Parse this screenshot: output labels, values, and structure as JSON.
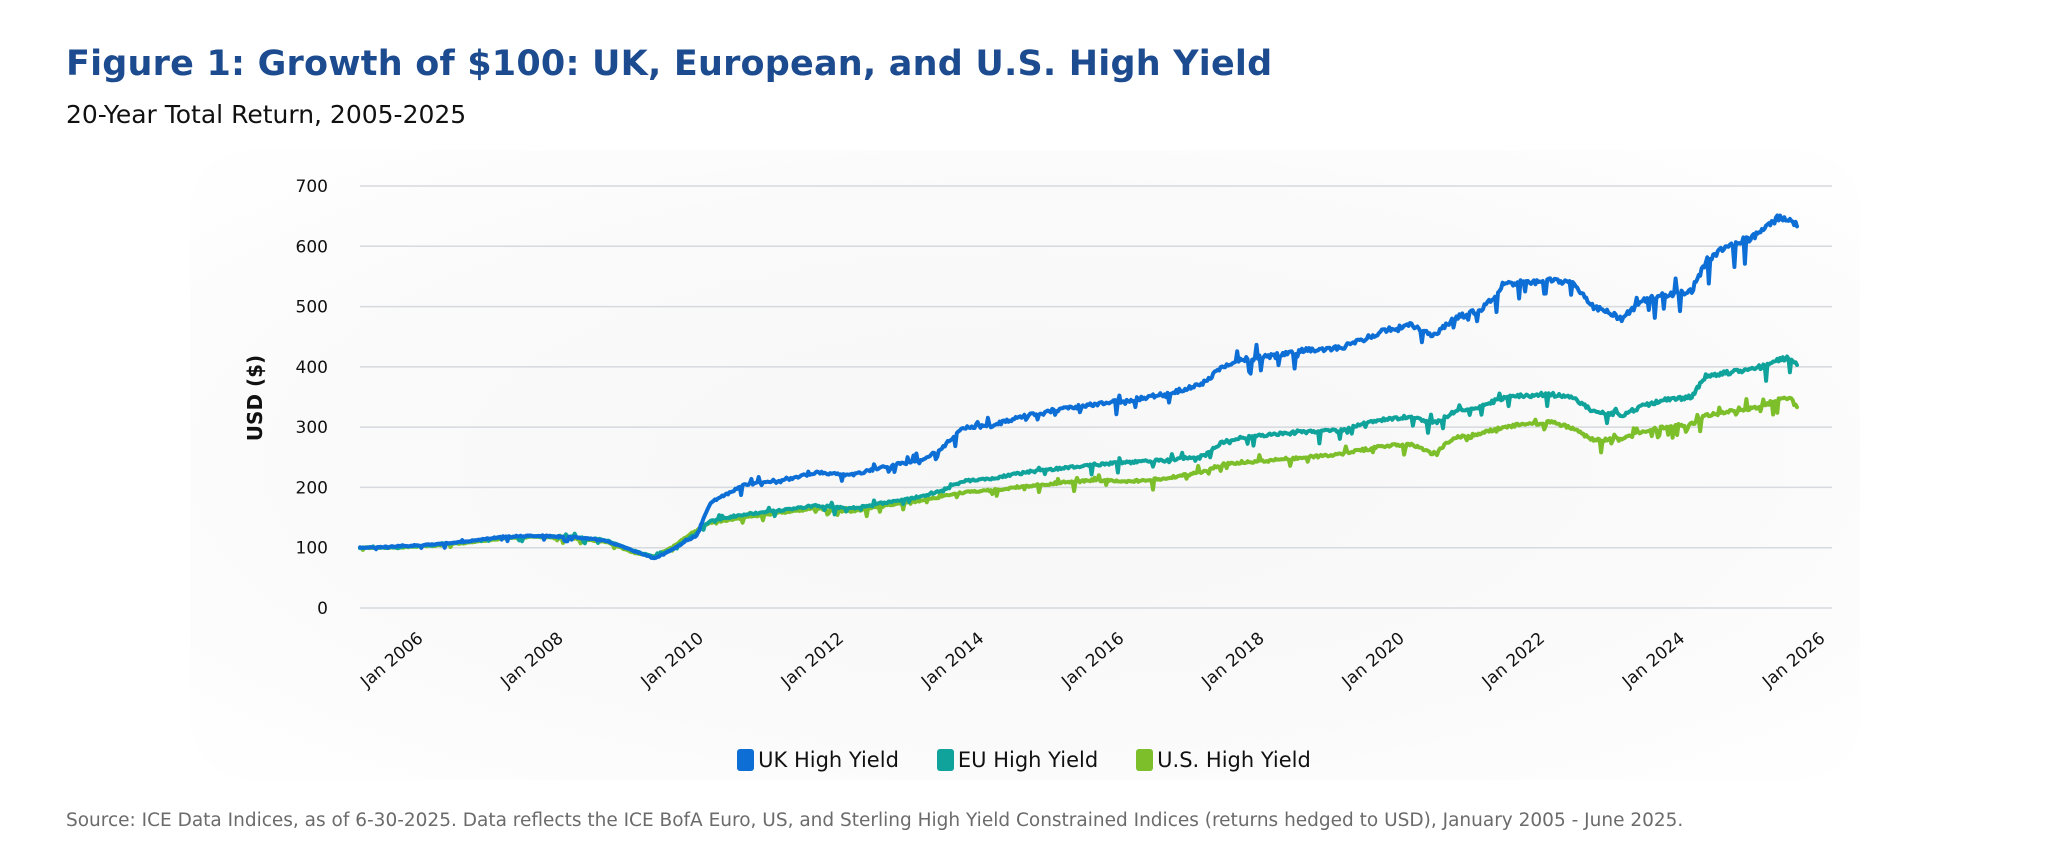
{
  "chart_data": {
    "type": "line",
    "title": "Figure 1: Growth of $100: UK, European, and U.S. High Yield",
    "subtitle": "20-Year Total Return, 2005-2025",
    "xlabel": "",
    "ylabel": "USD ($)",
    "ylim": [
      0,
      700
    ],
    "xlim": [
      2005.0,
      2026.0
    ],
    "grid": true,
    "legend_position": "bottom-center",
    "y_ticks": [
      0,
      100,
      200,
      300,
      400,
      500,
      600,
      700
    ],
    "x_ticks": [
      {
        "value": 2006,
        "label": "Jan 2006"
      },
      {
        "value": 2008,
        "label": "Jan 2008"
      },
      {
        "value": 2010,
        "label": "Jan 2010"
      },
      {
        "value": 2012,
        "label": "Jan 2012"
      },
      {
        "value": 2014,
        "label": "Jan 2014"
      },
      {
        "value": 2016,
        "label": "Jan 2016"
      },
      {
        "value": 2018,
        "label": "Jan 2018"
      },
      {
        "value": 2020,
        "label": "Jan 2020"
      },
      {
        "value": 2022,
        "label": "Jan 2022"
      },
      {
        "value": 2024,
        "label": "Jan 2024"
      },
      {
        "value": 2026,
        "label": "Jan 2026"
      }
    ],
    "series": [
      {
        "name": "UK High Yield",
        "color": "#0d6fd6",
        "x": [
          2005.0,
          2005.5,
          2006.0,
          2006.5,
          2007.0,
          2007.5,
          2008.0,
          2008.5,
          2008.9,
          2009.2,
          2009.5,
          2009.8,
          2010.0,
          2010.5,
          2011.0,
          2011.5,
          2012.0,
          2012.5,
          2013.0,
          2013.3,
          2013.6,
          2014.0,
          2014.5,
          2015.0,
          2015.5,
          2016.0,
          2016.5,
          2017.0,
          2017.3,
          2017.6,
          2018.0,
          2018.5,
          2019.0,
          2019.3,
          2019.6,
          2020.0,
          2020.3,
          2020.6,
          2021.0,
          2021.3,
          2021.6,
          2022.0,
          2022.3,
          2022.6,
          2023.0,
          2023.3,
          2023.6,
          2024.0,
          2024.2,
          2024.5,
          2024.8,
          2025.0,
          2025.2,
          2025.4,
          2025.5
        ],
        "values": [
          100,
          102,
          105,
          110,
          118,
          120,
          118,
          112,
          95,
          82,
          100,
          120,
          175,
          205,
          210,
          225,
          220,
          235,
          245,
          265,
          300,
          302,
          320,
          330,
          338,
          345,
          355,
          370,
          400,
          412,
          418,
          428,
          432,
          445,
          460,
          470,
          450,
          480,
          495,
          535,
          540,
          545,
          540,
          500,
          480,
          510,
          520,
          525,
          575,
          600,
          612,
          625,
          645,
          648,
          633
        ]
      },
      {
        "name": "EU High Yield",
        "color": "#10a39b",
        "x": [
          2005.0,
          2005.5,
          2006.0,
          2006.5,
          2007.0,
          2007.5,
          2008.0,
          2008.5,
          2008.9,
          2009.2,
          2009.5,
          2009.8,
          2010.0,
          2010.5,
          2011.0,
          2011.5,
          2012.0,
          2012.5,
          2013.0,
          2013.3,
          2013.6,
          2014.0,
          2014.5,
          2015.0,
          2015.5,
          2016.0,
          2016.5,
          2017.0,
          2017.3,
          2017.6,
          2018.0,
          2018.5,
          2019.0,
          2019.3,
          2019.6,
          2020.0,
          2020.3,
          2020.6,
          2021.0,
          2021.3,
          2021.6,
          2022.0,
          2022.3,
          2022.6,
          2023.0,
          2023.3,
          2023.6,
          2024.0,
          2024.2,
          2024.5,
          2024.8,
          2025.0,
          2025.2,
          2025.4,
          2025.5
        ],
        "values": [
          100,
          101,
          104,
          110,
          117,
          119,
          118,
          113,
          95,
          85,
          100,
          125,
          145,
          155,
          162,
          170,
          165,
          175,
          185,
          195,
          210,
          215,
          225,
          232,
          238,
          242,
          245,
          252,
          275,
          283,
          288,
          292,
          295,
          305,
          312,
          318,
          305,
          325,
          335,
          348,
          352,
          355,
          350,
          325,
          320,
          335,
          345,
          350,
          385,
          390,
          395,
          400,
          410,
          415,
          403
        ]
      },
      {
        "name": "U.S. High Yield",
        "color": "#7cbf2a",
        "x": [
          2005.0,
          2005.5,
          2006.0,
          2006.5,
          2007.0,
          2007.5,
          2008.0,
          2008.5,
          2008.9,
          2009.2,
          2009.5,
          2009.8,
          2010.0,
          2010.5,
          2011.0,
          2011.5,
          2012.0,
          2012.5,
          2013.0,
          2013.3,
          2013.6,
          2014.0,
          2014.5,
          2015.0,
          2015.5,
          2016.0,
          2016.5,
          2017.0,
          2017.3,
          2017.6,
          2018.0,
          2018.5,
          2019.0,
          2019.3,
          2019.6,
          2020.0,
          2020.3,
          2020.6,
          2021.0,
          2021.3,
          2021.6,
          2022.0,
          2022.3,
          2022.6,
          2023.0,
          2023.3,
          2023.6,
          2024.0,
          2024.2,
          2024.5,
          2024.8,
          2025.0,
          2025.2,
          2025.4,
          2025.5
        ],
        "values": [
          100,
          100,
          103,
          108,
          115,
          118,
          115,
          110,
          92,
          85,
          105,
          130,
          142,
          150,
          158,
          165,
          160,
          170,
          178,
          185,
          192,
          195,
          202,
          208,
          212,
          210,
          215,
          225,
          238,
          242,
          245,
          250,
          255,
          262,
          268,
          272,
          255,
          282,
          290,
          300,
          305,
          308,
          298,
          278,
          280,
          292,
          300,
          305,
          320,
          325,
          330,
          335,
          345,
          348,
          333
        ]
      }
    ]
  },
  "source_note": "Source: ICE Data Indices, as of 6-30-2025. Data reflects the ICE BofA Euro, US, and Sterling High Yield Constrained Indices (returns hedged to USD), January 2005 - June 2025."
}
